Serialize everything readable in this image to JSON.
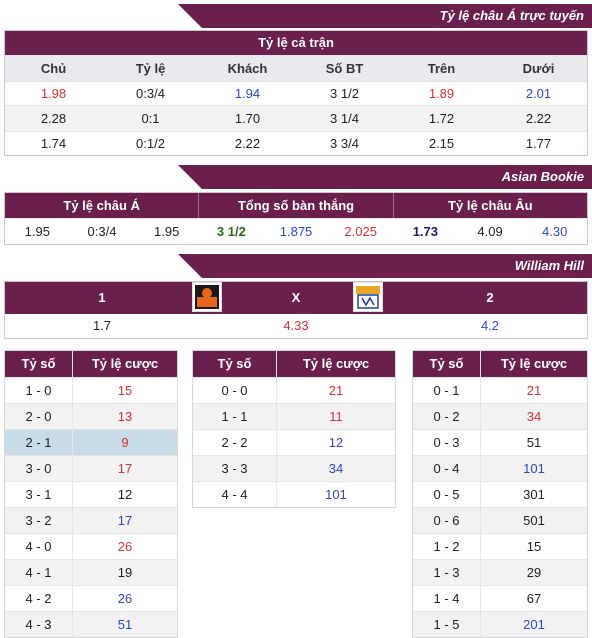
{
  "banners": {
    "live": "Tỷ lệ châu Á trực tuyến",
    "asian_bookie": "Asian Bookie",
    "william_hill": "William Hill"
  },
  "full_match": {
    "title": "Tỷ lệ cả trận",
    "headers": [
      "Chủ",
      "Tỷ lệ",
      "Khách",
      "Số BT",
      "Trên",
      "Dưới"
    ],
    "rows": [
      [
        "1.98",
        "0:3/4",
        "1.94",
        "3 1/2",
        "1.89",
        "2.01"
      ],
      [
        "2.28",
        "0:1",
        "1.70",
        "3 1/4",
        "1.72",
        "2.22"
      ],
      [
        "1.74",
        "0:1/2",
        "2.22",
        "3 3/4",
        "2.15",
        "1.77"
      ]
    ]
  },
  "asian_bookie": {
    "headers": [
      "Tỷ lệ châu Á",
      "Tổng số bàn thắng",
      "Tỷ lệ châu Âu"
    ],
    "values": [
      "1.95",
      "0:3/4",
      "1.95",
      "3 1/2",
      "1.875",
      "2.025",
      "1.73",
      "4.09",
      "4.30"
    ]
  },
  "william_hill": {
    "headers": [
      "1",
      "X",
      "2"
    ],
    "values": [
      "1.7",
      "4.33",
      "4.2"
    ],
    "home_logo": "home-team-logo",
    "away_logo": "away-team-logo"
  },
  "score_headers": [
    "Tỷ số",
    "Tỷ lệ cược"
  ],
  "home_scores": [
    [
      "1 - 0",
      "15"
    ],
    [
      "2 - 0",
      "13"
    ],
    [
      "2 - 1",
      "9"
    ],
    [
      "3 - 0",
      "17"
    ],
    [
      "3 - 1",
      "12"
    ],
    [
      "3 - 2",
      "17"
    ],
    [
      "4 - 0",
      "26"
    ],
    [
      "4 - 1",
      "19"
    ],
    [
      "4 - 2",
      "26"
    ],
    [
      "4 - 3",
      "51"
    ]
  ],
  "draw_scores": [
    [
      "0 - 0",
      "21"
    ],
    [
      "1 - 1",
      "11"
    ],
    [
      "2 - 2",
      "12"
    ],
    [
      "3 - 3",
      "34"
    ],
    [
      "4 - 4",
      "101"
    ]
  ],
  "away_scores": [
    [
      "0 - 1",
      "21"
    ],
    [
      "0 - 2",
      "34"
    ],
    [
      "0 - 3",
      "51"
    ],
    [
      "0 - 4",
      "101"
    ],
    [
      "0 - 5",
      "301"
    ],
    [
      "0 - 6",
      "501"
    ],
    [
      "1 - 2",
      "15"
    ],
    [
      "1 - 3",
      "29"
    ],
    [
      "1 - 4",
      "67"
    ],
    [
      "1 - 5",
      "201"
    ]
  ],
  "colors": {
    "brand": "#6b1f4d",
    "red": "#e0302f",
    "blue": "#2a47c8",
    "highlight": "#c7dce8"
  }
}
